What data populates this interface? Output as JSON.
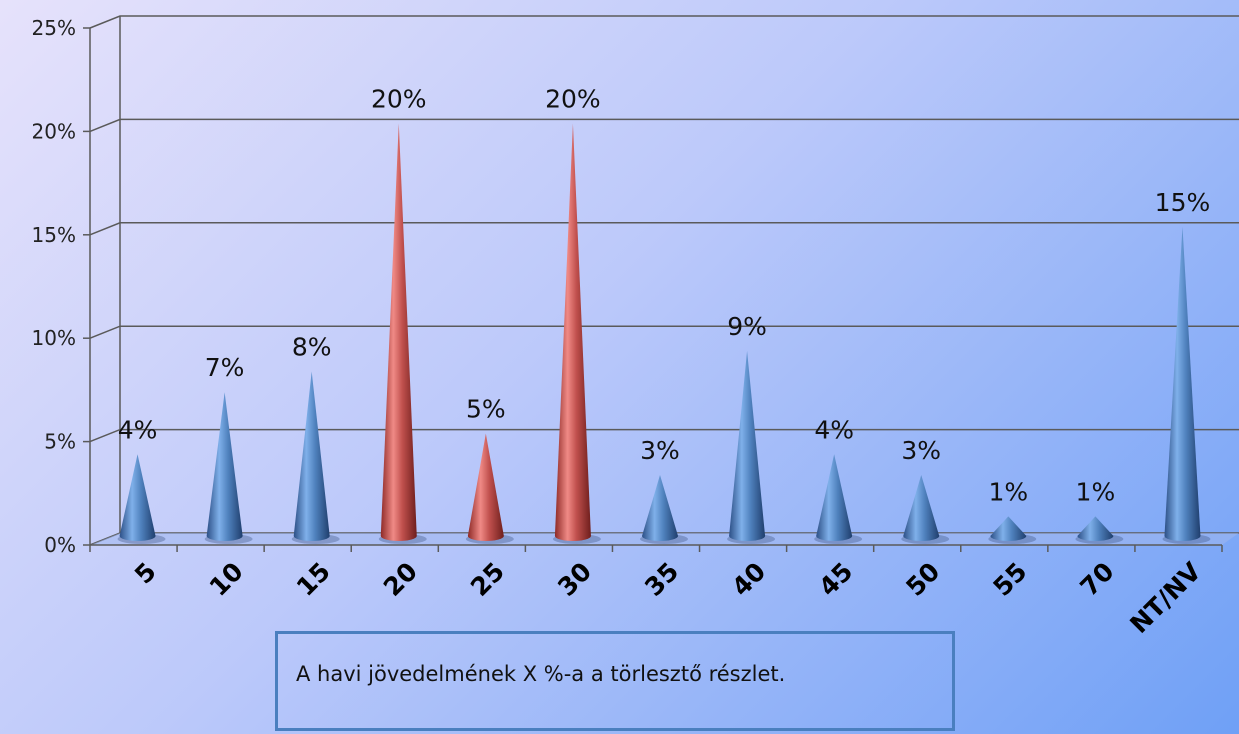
{
  "chart_data": {
    "type": "bar",
    "bar_shape": "cone",
    "categories": [
      "5",
      "10",
      "15",
      "20",
      "25",
      "30",
      "35",
      "40",
      "45",
      "50",
      "55",
      "70",
      "NT/NV"
    ],
    "values": [
      4,
      7,
      8,
      20,
      5,
      20,
      3,
      9,
      4,
      3,
      1,
      1,
      15
    ],
    "data_labels": [
      "4%",
      "7%",
      "8%",
      "20%",
      "5%",
      "20%",
      "3%",
      "9%",
      "4%",
      "3%",
      "1%",
      "1%",
      "15%"
    ],
    "highlighted": [
      false,
      false,
      false,
      true,
      true,
      true,
      false,
      false,
      false,
      false,
      false,
      false,
      false
    ],
    "y_ticks": [
      "0%",
      "5%",
      "10%",
      "15%",
      "20%",
      "25%"
    ],
    "ylim": [
      0,
      25
    ],
    "grid": true,
    "colors": {
      "normal": "#4f81bd",
      "highlight": "#c0504d",
      "grid": "#5a5a5a"
    }
  },
  "caption": "A havi jövedelmének X %-a a törlesztő részlet."
}
